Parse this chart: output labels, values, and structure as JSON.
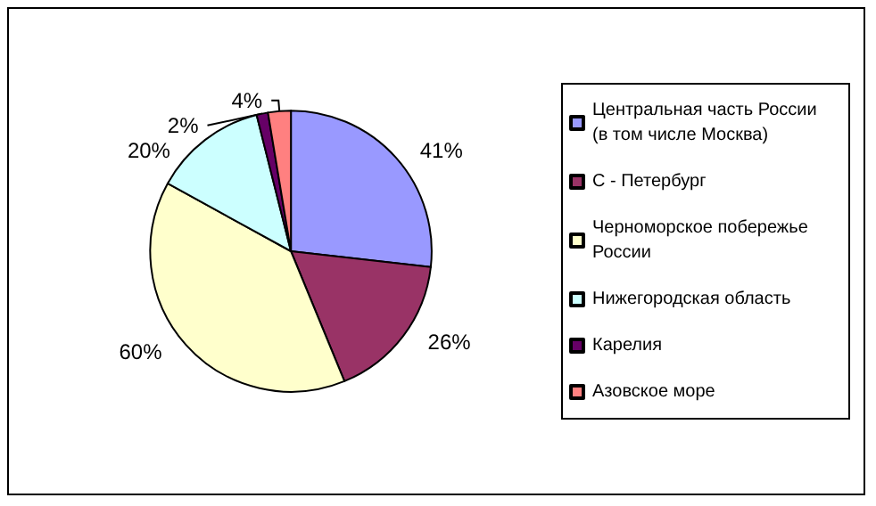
{
  "chart_data": {
    "type": "pie",
    "categories": [
      "Центральная часть России (в том числе Москва)",
      "С - Петербург",
      "Черноморское побережье России",
      "Нижегородская область",
      "Карелия",
      "Азовское море"
    ],
    "values": [
      41,
      26,
      60,
      20,
      2,
      4
    ],
    "value_labels": [
      "41%",
      "26%",
      "60%",
      "20%",
      "2%",
      "4%"
    ],
    "colors": [
      "#9999ff",
      "#993366",
      "#ffffcc",
      "#ccffff",
      "#660066",
      "#ff8080"
    ],
    "legend": "right"
  }
}
